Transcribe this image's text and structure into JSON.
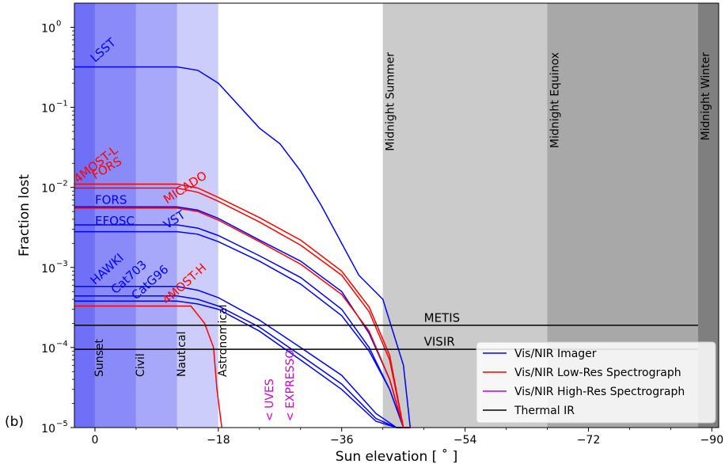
{
  "chart_data": {
    "type": "line",
    "panel_label": "(b)",
    "xlabel": "Sun elevation [$^\\circ$]",
    "xlabel_text": "Sun elevation [ ˚ ]",
    "ylabel": "Fraction lost",
    "xlim": [
      3,
      -91
    ],
    "ylim": [
      1e-05,
      2
    ],
    "yscale": "log",
    "xticks": [
      0,
      -18,
      -36,
      -54,
      -72,
      -90
    ],
    "xtick_labels": [
      "0",
      "−18",
      "−36",
      "−54",
      "−72",
      "−90"
    ],
    "yticks": [
      1e-05,
      0.0001,
      0.001,
      0.01,
      0.1,
      1
    ],
    "ytick_labels": [
      {
        "base": "10",
        "exp": "−5"
      },
      {
        "base": "10",
        "exp": "−4"
      },
      {
        "base": "10",
        "exp": "−3"
      },
      {
        "base": "10",
        "exp": "−2"
      },
      {
        "base": "10",
        "exp": "−1"
      },
      {
        "base": "10",
        "exp": "0"
      }
    ],
    "bands": [
      {
        "x0": 3,
        "x1": 0,
        "color": "#6f6ff7",
        "label": ""
      },
      {
        "x0": 0,
        "x1": -6,
        "color": "#8a8af8",
        "label": "Sunset"
      },
      {
        "x0": -6,
        "x1": -12,
        "color": "#a8a8fa",
        "label": "Civil"
      },
      {
        "x0": -12,
        "x1": -18,
        "color": "#cdcdfc",
        "label": "Nautical"
      },
      {
        "x0": -18,
        "x1": -42,
        "color": "#ffffff",
        "label": "Astronomical"
      },
      {
        "x0": -42,
        "x1": -66,
        "color": "#cbcbcb",
        "label": "Midnight Summer"
      },
      {
        "x0": -66,
        "x1": -88,
        "color": "#a8a8a8",
        "label": "Midnight Equinox"
      },
      {
        "x0": -88,
        "x1": -91,
        "color": "#7f7f7f",
        "label": "Midnight Winter"
      }
    ],
    "series": [
      {
        "label": "LSST",
        "group": "imager",
        "color": "#0000ff",
        "x": [
          3,
          -12,
          -15,
          -18,
          -24,
          -27,
          -30,
          -33,
          -38.5,
          -42,
          -45,
          -46
        ],
        "y": [
          0.32,
          0.32,
          0.29,
          0.2,
          0.055,
          0.035,
          0.016,
          0.006,
          0.0008,
          0.0004,
          6e-05,
          1e-05
        ]
      },
      {
        "label": "FORS",
        "group": "imager",
        "color": "#0000ff",
        "x": [
          3,
          -12,
          -15,
          -18,
          -24,
          -30,
          -36,
          -40,
          -43,
          -45,
          -46
        ],
        "y": [
          0.0057,
          0.0057,
          0.0052,
          0.0041,
          0.0022,
          0.0012,
          0.0005,
          0.00015,
          4e-05,
          1e-05,
          1e-05
        ]
      },
      {
        "label": "EFOSC",
        "group": "imager",
        "color": "#0000ff",
        "x": [
          3,
          -12,
          -15,
          -18,
          -24,
          -30,
          -36,
          -40,
          -43,
          -45,
          -46
        ],
        "y": [
          0.0034,
          0.0034,
          0.0031,
          0.0025,
          0.0014,
          0.00075,
          0.0003,
          0.0001,
          3e-05,
          1e-05,
          1e-05
        ]
      },
      {
        "label": "VST",
        "group": "imager",
        "color": "#0000ff",
        "x": [
          3,
          -12,
          -15,
          -18,
          -24,
          -30,
          -36,
          -40,
          -43,
          -45,
          -46
        ],
        "y": [
          0.0028,
          0.0028,
          0.0026,
          0.0021,
          0.0012,
          0.00062,
          0.00025,
          9e-05,
          3e-05,
          1e-05,
          1e-05
        ]
      },
      {
        "label": "HAWKI",
        "group": "imager",
        "color": "#0000ff",
        "x": [
          3,
          -12,
          -15,
          -18,
          -24,
          -30,
          -36,
          -41,
          -44,
          -46
        ],
        "y": [
          0.00058,
          0.00058,
          0.00052,
          0.00042,
          0.00022,
          0.0001,
          4.5e-05,
          1.5e-05,
          1e-05,
          1e-05
        ]
      },
      {
        "label": "Cat703",
        "group": "imager",
        "color": "#0000ff",
        "x": [
          3,
          -12,
          -15,
          -18,
          -24,
          -30,
          -36,
          -41,
          -44,
          -46
        ],
        "y": [
          0.00044,
          0.00044,
          0.0004,
          0.00033,
          0.00018,
          8e-05,
          3.5e-05,
          1.3e-05,
          1e-05,
          1e-05
        ]
      },
      {
        "label": "CatG96",
        "group": "imager",
        "color": "#0000ff",
        "x": [
          3,
          -12,
          -15,
          -18,
          -24,
          -30,
          -36,
          -41,
          -44,
          -46
        ],
        "y": [
          0.00038,
          0.00038,
          0.00035,
          0.0003,
          0.00016,
          7e-05,
          3e-05,
          1.2e-05,
          1e-05,
          1e-05
        ]
      },
      {
        "label": "FORS",
        "group": "lowres",
        "color": "#ff0000",
        "x": [
          3,
          -12,
          -15,
          -18,
          -24,
          -30,
          -36,
          -40,
          -43,
          -45,
          -46
        ],
        "y": [
          0.011,
          0.011,
          0.0098,
          0.0075,
          0.0042,
          0.0022,
          0.0009,
          0.00032,
          8e-05,
          1e-05,
          1e-05
        ]
      },
      {
        "label": "4MOST-L",
        "group": "lowres",
        "color": "#ff0000",
        "x": [
          3,
          -12,
          -15,
          -18,
          -24,
          -30,
          -36,
          -40,
          -43,
          -45,
          -46
        ],
        "y": [
          0.0098,
          0.0098,
          0.0087,
          0.0067,
          0.0037,
          0.0019,
          0.0008,
          0.00028,
          7e-05,
          1e-05,
          1e-05
        ]
      },
      {
        "label": "MICADO",
        "group": "lowres",
        "color": "#ff0000",
        "x": [
          3,
          -12,
          -15,
          -18,
          -24,
          -30,
          -36,
          -40,
          -43,
          -45,
          -46
        ],
        "y": [
          0.0055,
          0.0055,
          0.005,
          0.0039,
          0.0021,
          0.0011,
          0.00046,
          0.00016,
          4e-05,
          1e-05,
          1e-05
        ]
      },
      {
        "label": "4MOST-H",
        "group": "lowres",
        "color": "#ff0000",
        "x": [
          3,
          -12,
          -14,
          -16,
          -17.3,
          -17.8,
          -18.5
        ],
        "y": [
          0.00033,
          0.00033,
          0.00033,
          0.0002,
          0.0001,
          3e-05,
          1e-05
        ]
      },
      {
        "label": "METIS",
        "group": "thermal",
        "color": "#000000",
        "x": [
          3,
          -88
        ],
        "y": [
          0.00019,
          0.00019
        ]
      },
      {
        "label": "VISIR",
        "group": "thermal",
        "color": "#000000",
        "x": [
          3,
          -88
        ],
        "y": [
          9.5e-05,
          9.5e-05
        ]
      }
    ],
    "series_labels": [
      {
        "text": "LSST",
        "x": 0,
        "y": 0.36,
        "color": "#0000ff",
        "rotate": -42
      },
      {
        "text": "FORS",
        "x": 0,
        "y": 0.0125,
        "color": "#ff0000",
        "rotate": -30
      },
      {
        "text": "4MOST-L",
        "x": 2.5,
        "y": 0.0112,
        "color": "#ff0000",
        "rotate": -38
      },
      {
        "text": "MICADO",
        "x": -10.5,
        "y": 0.0062,
        "color": "#ff0000",
        "rotate": -33
      },
      {
        "text": "FORS",
        "x": 0,
        "y": 0.0062,
        "color": "#0000ff",
        "rotate": 0
      },
      {
        "text": "EFOSC",
        "x": 0,
        "y": 0.0034,
        "color": "#0000ff",
        "rotate": 0
      },
      {
        "text": "VST",
        "x": -10.5,
        "y": 0.003,
        "color": "#0000ff",
        "rotate": -33
      },
      {
        "text": "HAWKI",
        "x": 0,
        "y": 0.0006,
        "color": "#0000ff",
        "rotate": -42
      },
      {
        "text": "Cat703",
        "x": -3,
        "y": 0.00046,
        "color": "#0000ff",
        "rotate": -42
      },
      {
        "text": "CatG96",
        "x": -6,
        "y": 0.00039,
        "color": "#0000ff",
        "rotate": -42
      },
      {
        "text": "4MOST-H",
        "x": -10.5,
        "y": 0.00034,
        "color": "#ff0000",
        "rotate": -42
      },
      {
        "text": "METIS",
        "x": -48,
        "y": 0.00021,
        "color": "#000000",
        "rotate": 0
      },
      {
        "text": "VISIR",
        "x": -48,
        "y": 0.000105,
        "color": "#000000",
        "rotate": 0
      }
    ],
    "highres_markers": [
      {
        "text": "< UVES",
        "x": -26,
        "color": "#cc00cc"
      },
      {
        "text": "< EXPRESSO",
        "x": -29,
        "color": "#cc00cc"
      }
    ],
    "legend": {
      "placement": "lower right",
      "entries": [
        {
          "label": "Vis/NIR Imager",
          "color": "#0000ff"
        },
        {
          "label": "Vis/NIR Low-Res Spectrograph",
          "color": "#ff0000"
        },
        {
          "label": "Vis/NIR High-Res Spectrograph",
          "color": "#cc00cc"
        },
        {
          "label": "Thermal IR",
          "color": "#000000"
        }
      ]
    }
  }
}
